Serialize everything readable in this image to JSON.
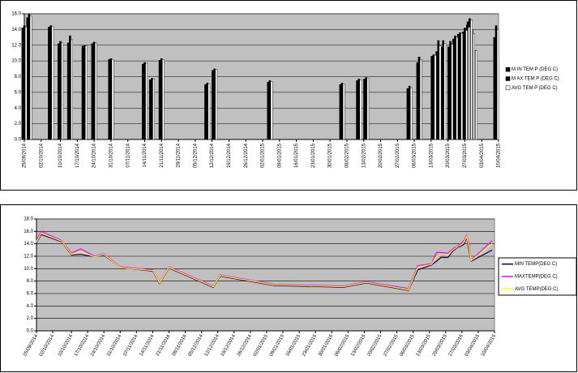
{
  "chart_data": [
    {
      "type": "bar",
      "x": [
        "25/09/2014",
        "27/09/2014",
        "06/10/2014",
        "10/10/2014",
        "14/10/2014",
        "20/10/2014",
        "24/10/2014",
        "31/10/2014",
        "14/11/2014",
        "17/11/2014",
        "21/11/2014",
        "10/12/2014",
        "13/12/2014",
        "05/01/2015",
        "04/02/2015",
        "11/02/2015",
        "14/02/2015",
        "04/03/2015",
        "08/03/2015",
        "14/03/2015",
        "16/03/2015",
        "18/03/2015",
        "21/03/2015",
        "23/03/2015",
        "25/03/2015",
        "27/03/2015",
        "28/03/2015",
        "29/03/2015",
        "30/03/2015",
        "31/03/2015",
        "09/04/2015"
      ],
      "series": [
        {
          "name": "M IN TEM P (DEG C)",
          "color": "#000000",
          "values": [
            14.2,
            15.5,
            14.3,
            12.2,
            12.3,
            11.9,
            12.2,
            10.2,
            9.6,
            7.6,
            10.1,
            7.0,
            8.8,
            7.3,
            7.0,
            7.5,
            7.7,
            6.5,
            9.8,
            10.6,
            11.2,
            11.8,
            11.8,
            12.8,
            13.4,
            13.7,
            14.0,
            15.0,
            13.0,
            11.2,
            13.0
          ]
        },
        {
          "name": "M AX TEM P (DEG C)",
          "color": "#000000",
          "values": [
            14.5,
            16.0,
            14.5,
            12.5,
            13.2,
            12.0,
            12.4,
            10.3,
            9.8,
            7.8,
            10.3,
            7.2,
            9.0,
            7.5,
            7.2,
            7.7,
            7.9,
            6.8,
            10.5,
            10.8,
            12.6,
            12.6,
            12.5,
            13.2,
            13.6,
            14.2,
            14.6,
            15.4,
            14.0,
            11.4,
            14.5
          ]
        },
        {
          "name": "AVG TEM P (DEG C)",
          "color": "#ffffff",
          "values": [
            14.3,
            15.7,
            14.4,
            12.3,
            12.7,
            11.9,
            12.3,
            10.2,
            9.7,
            7.7,
            10.2,
            7.1,
            8.9,
            7.4,
            7.1,
            7.6,
            7.8,
            6.6,
            10.2,
            10.7,
            11.9,
            12.2,
            12.1,
            13.0,
            13.5,
            13.9,
            14.3,
            15.2,
            13.5,
            11.3,
            14.0
          ]
        }
      ],
      "xlim": [
        "25/09/2014",
        "10/04/2015"
      ],
      "xticks": [
        "25/09/2014",
        "02/10/2014",
        "10/10/2014",
        "17/10/2014",
        "24/10/2014",
        "31/10/2014",
        "07/11/2014",
        "14/11/2014",
        "21/11/2014",
        "28/11/2014",
        "05/12/2014",
        "12/12/2014",
        "19/12/2014",
        "26/12/2014",
        "02/01/2015",
        "09/01/2015",
        "16/01/2015",
        "23/01/2015",
        "30/01/2015",
        "06/02/2015",
        "13/02/2015",
        "20/02/2015",
        "27/02/2015",
        "06/03/2015",
        "13/03/2015",
        "20/03/2015",
        "27/03/2015",
        "03/04/2015",
        "10/04/2015"
      ],
      "ylim": [
        0,
        16
      ],
      "yticks": [
        {
          "value": 0,
          "label": "0.0"
        },
        {
          "value": 2,
          "label": "2.0"
        },
        {
          "value": 4,
          "label": "4.0"
        },
        {
          "value": 6,
          "label": "6.0"
        },
        {
          "value": 8,
          "label": "8.0"
        },
        {
          "value": 10,
          "label": "10.0"
        },
        {
          "value": 12,
          "label": "12.0"
        },
        {
          "value": 14,
          "label": "14.0"
        },
        {
          "value": 16,
          "label": "16.0"
        }
      ],
      "grid": true,
      "legend": "right"
    },
    {
      "type": "line",
      "x": [
        "25/09/2014",
        "27/09/2014",
        "06/10/2014",
        "10/10/2014",
        "14/10/2014",
        "20/10/2014",
        "24/10/2014",
        "31/10/2014",
        "14/11/2014",
        "17/11/2014",
        "21/11/2014",
        "10/12/2014",
        "13/12/2014",
        "05/01/2015",
        "04/02/2015",
        "11/02/2015",
        "14/02/2015",
        "04/03/2015",
        "08/03/2015",
        "14/03/2015",
        "16/03/2015",
        "18/03/2015",
        "21/03/2015",
        "23/03/2015",
        "25/03/2015",
        "27/03/2015",
        "28/03/2015",
        "29/03/2015",
        "30/03/2015",
        "31/03/2015",
        "09/04/2015"
      ],
      "series": [
        {
          "name": "MIN TEMP(DEG C)",
          "color": "#000080",
          "values": [
            14.2,
            15.5,
            14.3,
            12.2,
            12.3,
            11.9,
            12.2,
            10.2,
            9.6,
            7.6,
            10.1,
            7.0,
            8.8,
            7.3,
            7.0,
            7.5,
            7.7,
            6.5,
            9.8,
            10.6,
            11.2,
            11.8,
            11.8,
            12.8,
            13.4,
            13.7,
            14.0,
            15.0,
            13.0,
            11.2,
            13.0
          ]
        },
        {
          "name": "MAXTEMP(DEG C)",
          "color": "#ff00ff",
          "values": [
            14.5,
            16.0,
            14.5,
            12.5,
            13.2,
            12.0,
            12.4,
            10.3,
            9.8,
            7.8,
            10.3,
            7.2,
            9.0,
            7.5,
            7.2,
            7.7,
            7.9,
            6.8,
            10.5,
            10.8,
            12.6,
            12.6,
            12.5,
            13.2,
            13.6,
            14.2,
            14.6,
            15.4,
            14.0,
            11.4,
            14.5
          ]
        },
        {
          "name": "AVG TEMP(DEG C)",
          "color": "#ffff00",
          "values": [
            14.3,
            15.7,
            14.4,
            12.3,
            12.7,
            11.9,
            12.3,
            10.2,
            9.7,
            7.7,
            10.2,
            7.1,
            8.9,
            7.4,
            7.1,
            7.6,
            7.8,
            6.6,
            10.2,
            10.7,
            11.9,
            12.2,
            12.1,
            13.0,
            13.5,
            13.9,
            14.3,
            15.2,
            13.5,
            11.3,
            14.0
          ]
        }
      ],
      "xlim": [
        "25/09/2014",
        "10/04/2015"
      ],
      "xticks": [
        "25/09/2014",
        "02/10/2014",
        "10/10/2014",
        "17/10/2014",
        "24/10/2014",
        "31/10/2014",
        "07/11/2014",
        "14/11/2014",
        "21/11/2014",
        "28/11/2014",
        "05/12/2014",
        "12/12/2014",
        "19/12/2014",
        "26/12/2014",
        "02/01/2015",
        "09/01/2015",
        "16/01/2015",
        "23/01/2015",
        "30/01/2015",
        "06/02/2015",
        "13/02/2015",
        "20/02/2015",
        "27/02/2015",
        "06/03/2015",
        "13/03/2015",
        "20/03/2015",
        "27/03/2015",
        "03/04/2015",
        "10/04/2015"
      ],
      "ylim": [
        0,
        18
      ],
      "yticks": [
        {
          "value": 0,
          "label": "0.0"
        },
        {
          "value": 2,
          "label": "2.0"
        },
        {
          "value": 4,
          "label": "4.0"
        },
        {
          "value": 6,
          "label": "6.0"
        },
        {
          "value": 8,
          "label": "8.0"
        },
        {
          "value": 10,
          "label": "10.0"
        },
        {
          "value": 12,
          "label": "12.0"
        },
        {
          "value": 14,
          "label": "14.0"
        },
        {
          "value": 16,
          "label": "16.0"
        },
        {
          "value": 18,
          "label": "18.0"
        }
      ],
      "grid": true,
      "legend": "right"
    }
  ]
}
